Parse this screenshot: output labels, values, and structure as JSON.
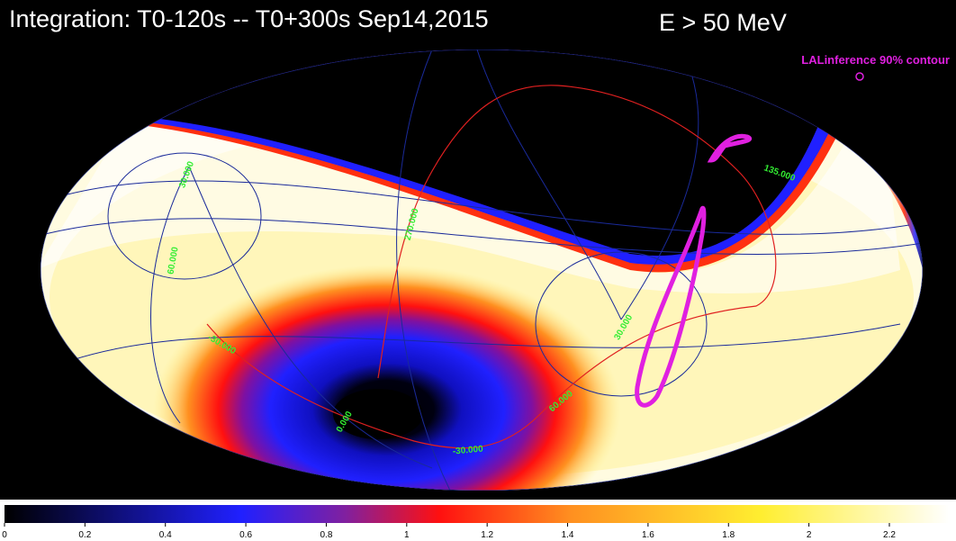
{
  "chart_data": {
    "type": "skymap",
    "title": "Integration: T0-120s -- T0+300s Sep14,2015",
    "subtitle": "E > 50 MeV",
    "legend": "LALinference 90% contour",
    "legend_color": "#e020e0",
    "grid_labels": [
      "30.000",
      "60.000",
      "270.000",
      "135.000",
      "-30.000",
      "0.000",
      "-30.000",
      "60.000",
      "30.000"
    ],
    "clim": [
      0,
      2.35
    ],
    "cticks": [
      0,
      0.2,
      0.4,
      0.6,
      0.8,
      1,
      1.2,
      1.4,
      1.6,
      1.8,
      2,
      2.2
    ]
  }
}
